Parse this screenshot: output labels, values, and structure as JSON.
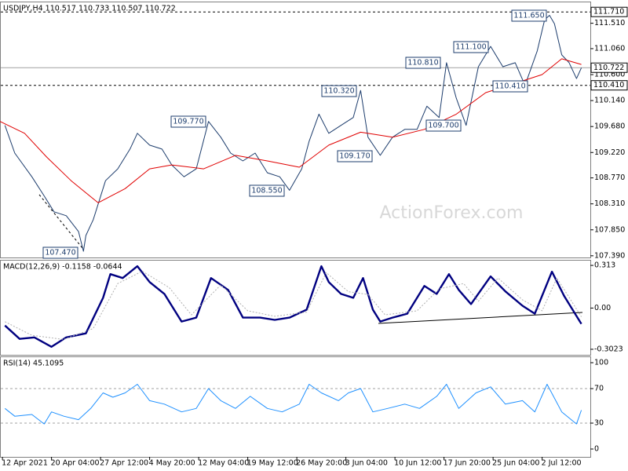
{
  "chart_data": [
    {
      "type": "line",
      "title": "USDJPY,H4  110.517 110.733 110.507 110.722",
      "watermark": "ActionForex.com",
      "xlim": [
        0,
        240
      ],
      "ylim": [
        107.36,
        111.88
      ],
      "yticks": [
        {
          "value": 111.51,
          "label": "111.510"
        },
        {
          "value": 111.06,
          "label": "111.060"
        },
        {
          "value": 110.6,
          "label": "110.600"
        },
        {
          "value": 110.14,
          "label": "110.140"
        },
        {
          "value": 109.68,
          "label": "109.680"
        },
        {
          "value": 109.22,
          "label": "109.220"
        },
        {
          "value": 108.77,
          "label": "108.770"
        },
        {
          "value": 108.31,
          "label": "108.310"
        },
        {
          "value": 107.85,
          "label": "107.850"
        },
        {
          "value": 107.39,
          "label": "107.390"
        }
      ],
      "levels": [
        {
          "value": 111.71,
          "label": "111.710"
        },
        {
          "value": 110.41,
          "label": "110.410"
        }
      ],
      "last_price": {
        "value": 110.722,
        "label": "110.722"
      },
      "annotations": [
        {
          "value": 107.47,
          "label": "107.470"
        },
        {
          "value": 109.77,
          "label": "109.770"
        },
        {
          "value": 108.55,
          "label": "108.550"
        },
        {
          "value": 110.32,
          "label": "110.320"
        },
        {
          "value": 109.17,
          "label": "109.170"
        },
        {
          "value": 110.81,
          "label": "110.810"
        },
        {
          "value": 111.1,
          "label": "111.100"
        },
        {
          "value": 109.7,
          "label": "109.700"
        },
        {
          "value": 110.41,
          "label": "110.410"
        },
        {
          "value": 111.65,
          "label": "111.650"
        }
      ],
      "series": [
        {
          "color": "#1c3c6c",
          "style": "solid",
          "x": [
            2,
            6,
            13,
            18,
            22,
            27,
            32,
            34,
            35,
            38,
            43,
            48,
            53,
            56,
            61,
            66,
            70,
            75,
            80,
            85,
            90,
            94,
            99,
            104,
            109,
            114,
            118,
            123,
            126,
            130,
            134,
            139,
            144,
            147,
            150,
            155,
            160,
            165,
            170,
            174,
            179,
            182,
            186,
            190,
            195,
            200,
            205,
            210,
            214,
            219,
            222,
            224,
            226,
            229,
            232,
            235,
            237
          ],
          "values": [
            109.7,
            109.21,
            108.79,
            108.45,
            108.17,
            108.1,
            107.82,
            107.47,
            107.75,
            108.03,
            108.72,
            108.93,
            109.28,
            109.56,
            109.35,
            109.28,
            109.0,
            108.79,
            108.93,
            109.77,
            109.49,
            109.21,
            109.07,
            109.21,
            108.86,
            108.79,
            108.55,
            108.93,
            109.42,
            109.9,
            109.56,
            109.7,
            109.84,
            110.32,
            109.49,
            109.17,
            109.49,
            109.63,
            109.63,
            110.04,
            109.84,
            110.81,
            110.18,
            109.7,
            110.74,
            111.1,
            110.74,
            110.81,
            110.41,
            111.02,
            111.57,
            111.65,
            111.5,
            110.95,
            110.81,
            110.53,
            110.72
          ]
        },
        {
          "color": "#e00000",
          "style": "solid",
          "x": [
            0,
            10,
            19,
            29,
            40,
            51,
            61,
            70,
            83,
            96,
            109,
            122,
            134,
            147,
            160,
            173,
            186,
            198,
            211,
            221,
            229,
            237
          ],
          "values": [
            109.77,
            109.56,
            109.14,
            108.72,
            108.33,
            108.58,
            108.93,
            109.0,
            108.93,
            109.17,
            109.07,
            108.96,
            109.35,
            109.58,
            109.49,
            109.63,
            109.9,
            110.28,
            110.46,
            110.6,
            110.88,
            110.78
          ]
        }
      ]
    },
    {
      "type": "line",
      "title": "MACD(12,26,9) -0.1158 -0.0644",
      "xlim": [
        0,
        240
      ],
      "ylim": [
        -0.343,
        0.348
      ],
      "yticks": [
        0.313,
        {
          "value": 0,
          "label": "0.00"
        },
        -0.3023
      ],
      "series": [
        {
          "color": "#000080",
          "style": "bold",
          "x": [
            2,
            8,
            14,
            21,
            27,
            35,
            42,
            45,
            50,
            56,
            61,
            67,
            74,
            80,
            86,
            93,
            99,
            106,
            112,
            118,
            125,
            131,
            134,
            139,
            144,
            148,
            152,
            155,
            160,
            166,
            173,
            178,
            183,
            187,
            192,
            200,
            206,
            213,
            218,
            225,
            230,
            237
          ],
          "values": [
            -0.128,
            -0.226,
            -0.215,
            -0.284,
            -0.215,
            -0.186,
            0.075,
            0.249,
            0.22,
            0.307,
            0.191,
            0.104,
            -0.099,
            -0.07,
            0.22,
            0.133,
            -0.07,
            -0.07,
            -0.087,
            -0.07,
            -0.012,
            0.307,
            0.191,
            0.104,
            0.075,
            0.22,
            -0.012,
            -0.099,
            -0.07,
            -0.041,
            0.162,
            0.104,
            0.249,
            0.133,
            0.029,
            0.232,
            0.122,
            0.017,
            -0.041,
            0.267,
            0.087,
            -0.116
          ]
        },
        {
          "color": "#b0b0b0",
          "style": "dotted",
          "x": [
            2,
            13,
            26,
            38,
            48,
            58,
            69,
            78,
            90,
            101,
            112,
            125,
            133,
            142,
            150,
            157,
            170,
            179,
            189,
            195,
            203,
            213,
            221,
            227,
            237
          ],
          "values": [
            -0.1,
            -0.2,
            -0.23,
            -0.15,
            0.18,
            0.27,
            0.15,
            -0.05,
            0.17,
            -0.02,
            -0.06,
            -0.03,
            0.26,
            0.12,
            0.1,
            -0.05,
            -0.02,
            0.14,
            0.18,
            0.05,
            0.22,
            0.06,
            -0.02,
            0.22,
            -0.064
          ]
        }
      ]
    },
    {
      "type": "line",
      "title": "RSI(14) 45.1095",
      "xlim": [
        0,
        240
      ],
      "ylim": [
        -9.1,
        106.4
      ],
      "yticks": [
        100,
        70,
        30,
        0
      ],
      "levels": [
        70,
        30
      ],
      "xticks": [
        {
          "value": 1,
          "label": "12 Apr 2021"
        },
        {
          "value": 21,
          "label": "20 Apr 04:00"
        },
        {
          "value": 41,
          "label": "27 Apr 12:00"
        },
        {
          "value": 61,
          "label": "4 May 20:00"
        },
        {
          "value": 81,
          "label": "12 May 04:00"
        },
        {
          "value": 101,
          "label": "19 May 12:00"
        },
        {
          "value": 121,
          "label": "26 May 20:00"
        },
        {
          "value": 141,
          "label": "3 Jun 04:00"
        },
        {
          "value": 161,
          "label": "10 Jun 12:00"
        },
        {
          "value": 181,
          "label": "17 Jun 20:00"
        },
        {
          "value": 201,
          "label": "25 Jun 04:00"
        },
        {
          "value": 221,
          "label": "2 Jul 12:00"
        }
      ],
      "series": [
        {
          "color": "#1e90ff",
          "style": "solid",
          "x": [
            2,
            6,
            13,
            18,
            21,
            26,
            32,
            37,
            42,
            46,
            51,
            56,
            61,
            67,
            74,
            80,
            85,
            90,
            96,
            102,
            109,
            115,
            122,
            126,
            131,
            138,
            142,
            147,
            152,
            158,
            165,
            171,
            178,
            182,
            187,
            194,
            200,
            206,
            213,
            218,
            223,
            229,
            235,
            237
          ],
          "values": [
            47,
            38,
            40,
            29,
            43,
            38,
            34,
            47,
            65,
            60,
            65,
            75,
            56,
            52,
            43,
            47,
            70,
            56,
            47,
            61,
            47,
            43,
            52,
            75,
            65,
            56,
            65,
            70,
            43,
            47,
            52,
            47,
            61,
            75,
            47,
            65,
            72,
            52,
            56,
            43,
            75,
            43,
            29,
            45
          ]
        }
      ]
    }
  ]
}
